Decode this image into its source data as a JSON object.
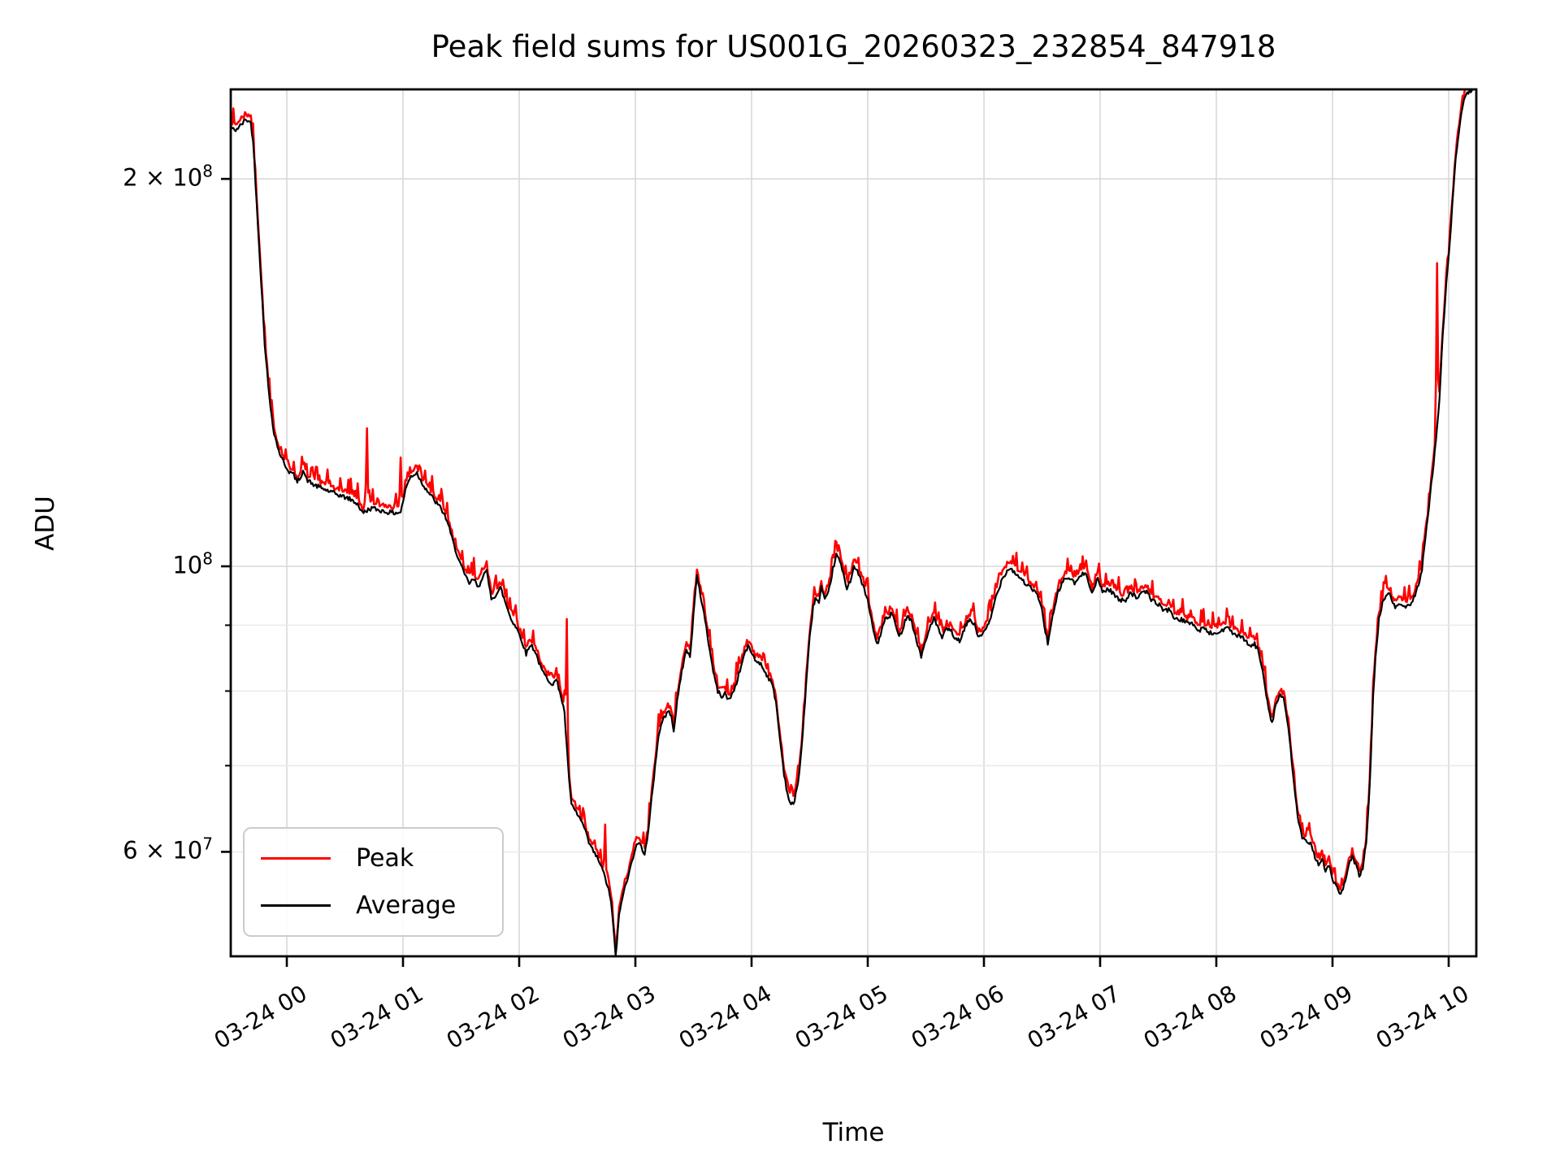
{
  "title": "Peak field sums for US001G_20260323_232854_847918",
  "axes": {
    "x_label": "Time",
    "y_label": "ADU",
    "x_tick_labels": [
      "03-24 00",
      "03-24 01",
      "03-24 02",
      "03-24 03",
      "03-24 04",
      "03-24 05",
      "03-24 06",
      "03-24 07",
      "03-24 08",
      "03-24 09",
      "03-24 10"
    ],
    "y_ticks": [
      {
        "base": "2 × 10",
        "sup": "8",
        "value": 200000000
      },
      {
        "base": "10",
        "sup": "8",
        "value": 100000000
      },
      {
        "base": "6 × 10",
        "sup": "7",
        "value": 60000000
      }
    ],
    "y_minor_ticks": [
      90000000,
      80000000,
      70000000
    ]
  },
  "legend": {
    "entries": [
      {
        "label": "Peak",
        "color": "#ff0000"
      },
      {
        "label": "Average",
        "color": "#000000"
      }
    ]
  },
  "colors": {
    "background": "#ffffff",
    "axis": "#000000",
    "grid_major": "#d9d9d9",
    "grid_minor": "#e9e9e9",
    "peak": "#ff0000",
    "average": "#000000"
  },
  "chart_data": {
    "type": "line",
    "title": "Peak field sums for US001G_20260323_232854_847918",
    "xlabel": "Time",
    "ylabel": "ADU",
    "y_scale": "log",
    "x_axis_note": "time on 03-24, hourly gridlines and ticks from 00:00 to 10:00; data spans ~23:31 (prev. day) to ~10:14",
    "x_range_hours": [
      -0.48,
      10.24
    ],
    "y_range_adu": [
      49700000,
      236000000
    ],
    "grid": true,
    "legend_position": "lower left",
    "series": [
      {
        "name": "Peak",
        "color": "#ff0000",
        "description": "per-interval peak field sum; tracks Average from ~0.5% to ~1.5% above it with noisy fringe and discrete upward spikes",
        "spikes_hours_vs_adu_1e7": [
          [
            0.69,
            12.8
          ],
          [
            0.98,
            12.15
          ],
          [
            2.41,
            9.1
          ],
          [
            2.74,
            6.3
          ],
          [
            6.85,
            10.18
          ],
          [
            6.99,
            10.05
          ],
          [
            9.9,
            17.2
          ]
        ]
      },
      {
        "name": "Average",
        "color": "#000000",
        "units": "ADU, values given in multiples of 1e7",
        "keypoints_hours_vs_adu_1e7": [
          [
            -0.48,
            21.95
          ],
          [
            -0.45,
            21.8
          ],
          [
            -0.41,
            21.95
          ],
          [
            -0.35,
            22.25
          ],
          [
            -0.31,
            22.1
          ],
          [
            -0.29,
            21.4
          ],
          [
            -0.26,
            19.2
          ],
          [
            -0.22,
            16.6
          ],
          [
            -0.19,
            14.9
          ],
          [
            -0.15,
            13.5
          ],
          [
            -0.11,
            12.7
          ],
          [
            -0.07,
            12.3
          ],
          [
            -0.02,
            12.0
          ],
          [
            0.02,
            11.85
          ],
          [
            0.06,
            11.78
          ],
          [
            0.09,
            11.62
          ],
          [
            0.12,
            11.75
          ],
          [
            0.14,
            11.88
          ],
          [
            0.17,
            11.68
          ],
          [
            0.23,
            11.57
          ],
          [
            0.3,
            11.5
          ],
          [
            0.38,
            11.42
          ],
          [
            0.46,
            11.35
          ],
          [
            0.54,
            11.28
          ],
          [
            0.61,
            11.18
          ],
          [
            0.65,
            11.0
          ],
          [
            0.69,
            11.05
          ],
          [
            0.73,
            11.1
          ],
          [
            0.79,
            11.06
          ],
          [
            0.86,
            11.02
          ],
          [
            0.93,
            11.0
          ],
          [
            0.98,
            11.02
          ],
          [
            1.03,
            11.55
          ],
          [
            1.07,
            11.75
          ],
          [
            1.12,
            11.82
          ],
          [
            1.16,
            11.62
          ],
          [
            1.21,
            11.45
          ],
          [
            1.27,
            11.25
          ],
          [
            1.33,
            11.08
          ],
          [
            1.38,
            10.85
          ],
          [
            1.43,
            10.45
          ],
          [
            1.48,
            10.12
          ],
          [
            1.53,
            9.85
          ],
          [
            1.57,
            9.7
          ],
          [
            1.61,
            9.77
          ],
          [
            1.65,
            9.62
          ],
          [
            1.69,
            9.86
          ],
          [
            1.72,
            9.9
          ],
          [
            1.76,
            9.45
          ],
          [
            1.8,
            9.5
          ],
          [
            1.84,
            9.62
          ],
          [
            1.88,
            9.38
          ],
          [
            1.93,
            9.1
          ],
          [
            1.98,
            8.95
          ],
          [
            2.03,
            8.72
          ],
          [
            2.06,
            8.55
          ],
          [
            2.1,
            8.7
          ],
          [
            2.14,
            8.58
          ],
          [
            2.19,
            8.32
          ],
          [
            2.24,
            8.18
          ],
          [
            2.29,
            8.1
          ],
          [
            2.32,
            8.16
          ],
          [
            2.35,
            8.0
          ],
          [
            2.39,
            7.7
          ],
          [
            2.42,
            7.0
          ],
          [
            2.45,
            6.52
          ],
          [
            2.5,
            6.42
          ],
          [
            2.55,
            6.3
          ],
          [
            2.6,
            6.1
          ],
          [
            2.64,
            6.0
          ],
          [
            2.68,
            5.92
          ],
          [
            2.72,
            5.8
          ],
          [
            2.76,
            5.65
          ],
          [
            2.79,
            5.5
          ],
          [
            2.81,
            5.25
          ],
          [
            2.83,
            4.97
          ],
          [
            2.86,
            5.35
          ],
          [
            2.89,
            5.55
          ],
          [
            2.93,
            5.7
          ],
          [
            2.97,
            5.9
          ],
          [
            3.01,
            6.1
          ],
          [
            3.05,
            6.06
          ],
          [
            3.08,
            5.98
          ],
          [
            3.11,
            6.2
          ],
          [
            3.14,
            6.6
          ],
          [
            3.17,
            7.0
          ],
          [
            3.2,
            7.4
          ],
          [
            3.24,
            7.62
          ],
          [
            3.28,
            7.7
          ],
          [
            3.31,
            7.68
          ],
          [
            3.33,
            7.45
          ],
          [
            3.36,
            7.85
          ],
          [
            3.4,
            8.3
          ],
          [
            3.44,
            8.62
          ],
          [
            3.47,
            8.5
          ],
          [
            3.51,
            9.4
          ],
          [
            3.53,
            9.82
          ],
          [
            3.56,
            9.5
          ],
          [
            3.6,
            9.1
          ],
          [
            3.64,
            8.6
          ],
          [
            3.68,
            8.2
          ],
          [
            3.71,
            8.0
          ],
          [
            3.74,
            7.92
          ],
          [
            3.77,
            7.97
          ],
          [
            3.8,
            7.87
          ],
          [
            3.83,
            7.95
          ],
          [
            3.86,
            8.06
          ],
          [
            3.9,
            8.3
          ],
          [
            3.94,
            8.56
          ],
          [
            3.97,
            8.66
          ],
          [
            4.0,
            8.58
          ],
          [
            4.03,
            8.45
          ],
          [
            4.07,
            8.42
          ],
          [
            4.11,
            8.3
          ],
          [
            4.15,
            8.18
          ],
          [
            4.18,
            8.08
          ],
          [
            4.21,
            7.85
          ],
          [
            4.24,
            7.4
          ],
          [
            4.28,
            6.9
          ],
          [
            4.31,
            6.65
          ],
          [
            4.34,
            6.52
          ],
          [
            4.37,
            6.56
          ],
          [
            4.41,
            6.9
          ],
          [
            4.44,
            7.4
          ],
          [
            4.47,
            8.1
          ],
          [
            4.5,
            8.8
          ],
          [
            4.53,
            9.3
          ],
          [
            4.55,
            9.45
          ],
          [
            4.58,
            9.36
          ],
          [
            4.6,
            9.63
          ],
          [
            4.63,
            9.4
          ],
          [
            4.66,
            9.52
          ],
          [
            4.7,
            9.95
          ],
          [
            4.73,
            10.2
          ],
          [
            4.76,
            10.1
          ],
          [
            4.79,
            9.85
          ],
          [
            4.82,
            9.62
          ],
          [
            4.85,
            9.75
          ],
          [
            4.88,
            10.0
          ],
          [
            4.91,
            9.9
          ],
          [
            4.95,
            9.72
          ],
          [
            5.0,
            9.4
          ],
          [
            5.04,
            9.0
          ],
          [
            5.08,
            8.68
          ],
          [
            5.12,
            8.92
          ],
          [
            5.15,
            9.1
          ],
          [
            5.18,
            9.12
          ],
          [
            5.21,
            9.2
          ],
          [
            5.24,
            9.0
          ],
          [
            5.27,
            8.8
          ],
          [
            5.31,
            9.0
          ],
          [
            5.34,
            9.18
          ],
          [
            5.38,
            9.05
          ],
          [
            5.42,
            8.75
          ],
          [
            5.46,
            8.52
          ],
          [
            5.5,
            8.75
          ],
          [
            5.54,
            9.0
          ],
          [
            5.57,
            9.12
          ],
          [
            5.61,
            8.92
          ],
          [
            5.64,
            8.8
          ],
          [
            5.68,
            8.94
          ],
          [
            5.72,
            8.9
          ],
          [
            5.76,
            8.76
          ],
          [
            5.8,
            8.76
          ],
          [
            5.84,
            8.98
          ],
          [
            5.88,
            9.1
          ],
          [
            5.92,
            9.0
          ],
          [
            5.95,
            8.82
          ],
          [
            6.0,
            8.88
          ],
          [
            6.05,
            9.05
          ],
          [
            6.1,
            9.45
          ],
          [
            6.16,
            9.8
          ],
          [
            6.22,
            9.98
          ],
          [
            6.26,
            9.9
          ],
          [
            6.32,
            9.78
          ],
          [
            6.38,
            9.65
          ],
          [
            6.44,
            9.56
          ],
          [
            6.49,
            9.35
          ],
          [
            6.52,
            9.0
          ],
          [
            6.55,
            8.72
          ],
          [
            6.59,
            9.12
          ],
          [
            6.64,
            9.56
          ],
          [
            6.69,
            9.77
          ],
          [
            6.73,
            9.8
          ],
          [
            6.78,
            9.7
          ],
          [
            6.83,
            9.82
          ],
          [
            6.88,
            9.9
          ],
          [
            6.93,
            9.52
          ],
          [
            6.98,
            9.78
          ],
          [
            7.02,
            9.56
          ],
          [
            7.07,
            9.6
          ],
          [
            7.12,
            9.52
          ],
          [
            7.17,
            9.4
          ],
          [
            7.22,
            9.42
          ],
          [
            7.26,
            9.55
          ],
          [
            7.31,
            9.46
          ],
          [
            7.36,
            9.52
          ],
          [
            7.4,
            9.56
          ],
          [
            7.45,
            9.4
          ],
          [
            7.5,
            9.35
          ],
          [
            7.55,
            9.24
          ],
          [
            7.6,
            9.26
          ],
          [
            7.65,
            9.08
          ],
          [
            7.7,
            9.1
          ],
          [
            7.75,
            9.02
          ],
          [
            7.79,
            9.06
          ],
          [
            7.84,
            8.9
          ],
          [
            7.89,
            8.96
          ],
          [
            7.94,
            8.88
          ],
          [
            8.0,
            8.86
          ],
          [
            8.05,
            8.92
          ],
          [
            8.09,
            8.96
          ],
          [
            8.14,
            8.88
          ],
          [
            8.19,
            8.82
          ],
          [
            8.24,
            8.78
          ],
          [
            8.29,
            8.66
          ],
          [
            8.33,
            8.7
          ],
          [
            8.36,
            8.6
          ],
          [
            8.4,
            8.3
          ],
          [
            8.44,
            7.85
          ],
          [
            8.48,
            7.55
          ],
          [
            8.51,
            7.8
          ],
          [
            8.55,
            7.95
          ],
          [
            8.58,
            7.88
          ],
          [
            8.62,
            7.5
          ],
          [
            8.66,
            6.9
          ],
          [
            8.7,
            6.4
          ],
          [
            8.74,
            6.14
          ],
          [
            8.78,
            6.1
          ],
          [
            8.82,
            6.08
          ],
          [
            8.85,
            5.95
          ],
          [
            8.88,
            5.87
          ],
          [
            8.91,
            5.93
          ],
          [
            8.94,
            5.78
          ],
          [
            8.97,
            5.86
          ],
          [
            9.0,
            5.72
          ],
          [
            9.04,
            5.62
          ],
          [
            9.07,
            5.56
          ],
          [
            9.11,
            5.68
          ],
          [
            9.14,
            5.86
          ],
          [
            9.17,
            5.94
          ],
          [
            9.2,
            5.87
          ],
          [
            9.23,
            5.75
          ],
          [
            9.26,
            5.82
          ],
          [
            9.29,
            6.1
          ],
          [
            9.31,
            6.5
          ],
          [
            9.33,
            7.1
          ],
          [
            9.35,
            7.9
          ],
          [
            9.37,
            8.5
          ],
          [
            9.4,
            9.1
          ],
          [
            9.43,
            9.35
          ],
          [
            9.46,
            9.5
          ],
          [
            9.48,
            9.55
          ],
          [
            9.51,
            9.4
          ],
          [
            9.54,
            9.3
          ],
          [
            9.58,
            9.35
          ],
          [
            9.62,
            9.3
          ],
          [
            9.66,
            9.32
          ],
          [
            9.7,
            9.45
          ],
          [
            9.74,
            9.68
          ],
          [
            9.77,
            9.95
          ],
          [
            9.8,
            10.55
          ],
          [
            9.83,
            11.1
          ],
          [
            9.86,
            11.8
          ],
          [
            9.89,
            12.5
          ],
          [
            9.92,
            13.5
          ],
          [
            9.95,
            15.2
          ],
          [
            9.98,
            16.6
          ],
          [
            10.01,
            17.8
          ],
          [
            10.03,
            19.0
          ],
          [
            10.06,
            20.7
          ],
          [
            10.09,
            21.9
          ],
          [
            10.12,
            22.8
          ],
          [
            10.15,
            23.2
          ],
          [
            10.18,
            23.4
          ],
          [
            10.21,
            23.5
          ],
          [
            10.24,
            23.65
          ]
        ]
      }
    ]
  }
}
